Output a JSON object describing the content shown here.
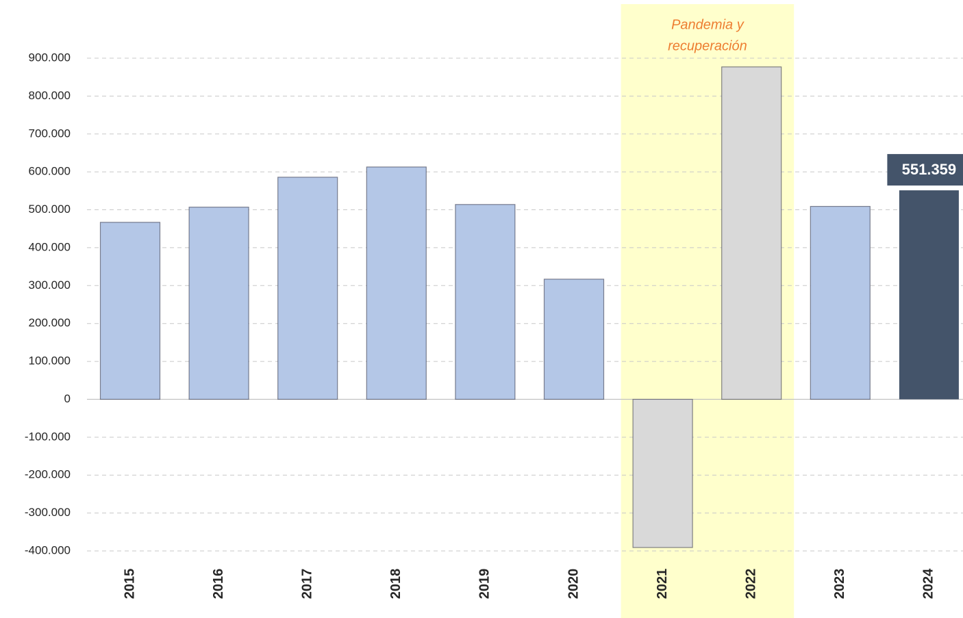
{
  "chart_data": {
    "type": "bar",
    "categories": [
      "2015",
      "2016",
      "2017",
      "2018",
      "2019",
      "2020",
      "2021",
      "2022",
      "2023",
      "2024"
    ],
    "values": [
      467000,
      507000,
      586000,
      613000,
      514000,
      317000,
      -391000,
      877000,
      509000,
      551359
    ],
    "value_labels": [
      null,
      null,
      null,
      null,
      null,
      null,
      null,
      null,
      null,
      "551.359"
    ],
    "colors": [
      "#b4c7e7",
      "#b4c7e7",
      "#b4c7e7",
      "#b4c7e7",
      "#b4c7e7",
      "#b4c7e7",
      "#d9d9d9",
      "#d9d9d9",
      "#b4c7e7",
      "#44546a"
    ],
    "ylim": [
      -400000,
      900000
    ],
    "yticks": [
      {
        "value": -400000,
        "label": "-400.000"
      },
      {
        "value": -300000,
        "label": "-300.000"
      },
      {
        "value": -200000,
        "label": "-200.000"
      },
      {
        "value": -100000,
        "label": "-100.000"
      },
      0,
      {
        "value": 100000,
        "label": "100.000"
      },
      {
        "value": 200000,
        "label": "200.000"
      },
      {
        "value": 300000,
        "label": "300.000"
      },
      {
        "value": 400000,
        "label": "400.000"
      },
      {
        "value": 500000,
        "label": "500.000"
      },
      {
        "value": 600000,
        "label": "600.000"
      },
      {
        "value": 700000,
        "label": "700.000"
      },
      {
        "value": 800000,
        "label": "800.000"
      },
      {
        "value": 900000,
        "label": "900.000"
      }
    ],
    "grid": true,
    "annotation": {
      "lines": [
        "Pandemia y",
        "recuperación"
      ],
      "span": [
        "2021",
        "2022"
      ],
      "color": "#ed7d31",
      "background": "#ffffcc"
    }
  }
}
